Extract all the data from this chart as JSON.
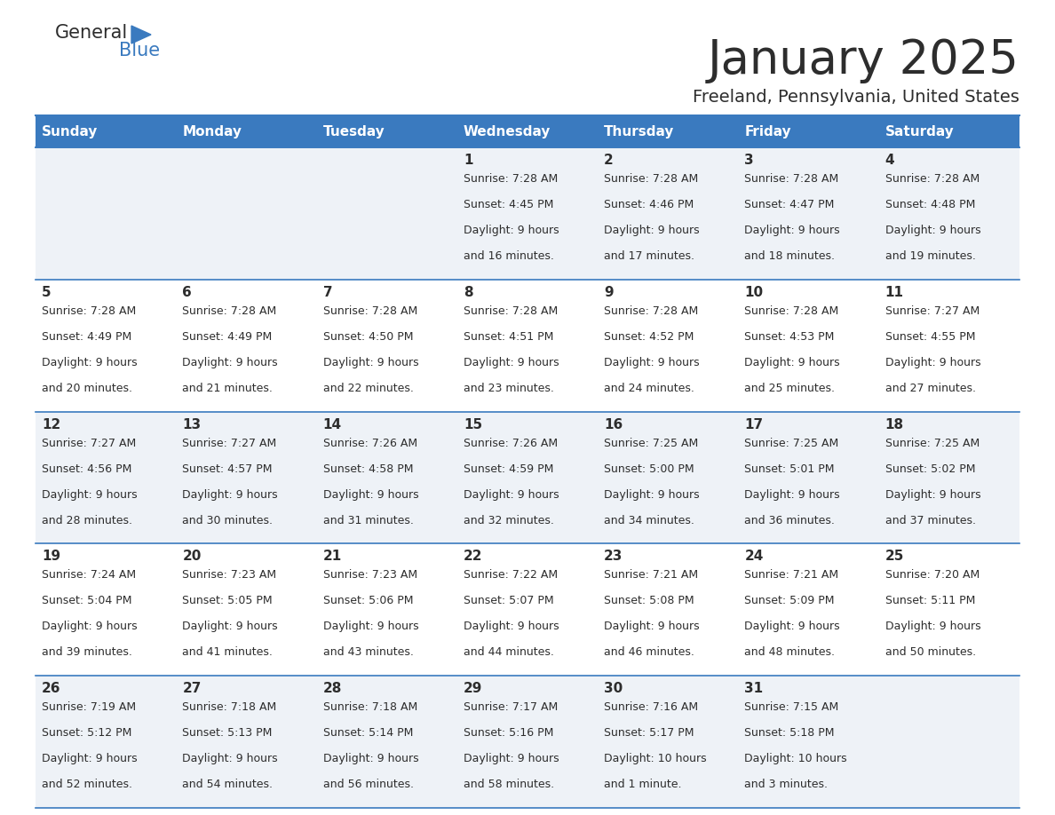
{
  "title": "January 2025",
  "subtitle": "Freeland, Pennsylvania, United States",
  "header_bg": "#3a7abf",
  "header_text_color": "#ffffff",
  "row_bg_odd": "#eef2f7",
  "row_bg_even": "#ffffff",
  "cell_border_color": "#3a7abf",
  "day_headers": [
    "Sunday",
    "Monday",
    "Tuesday",
    "Wednesday",
    "Thursday",
    "Friday",
    "Saturday"
  ],
  "title_color": "#2d2d2d",
  "subtitle_color": "#2d2d2d",
  "day_num_color": "#2d2d2d",
  "info_color": "#2d2d2d",
  "logo_general_color": "#2d2d2d",
  "logo_blue_color": "#3a7abf",
  "logo_triangle_color": "#3a7abf",
  "calendar_data": [
    [
      {
        "day": "",
        "sunrise": "",
        "sunset": "",
        "daylight": ""
      },
      {
        "day": "",
        "sunrise": "",
        "sunset": "",
        "daylight": ""
      },
      {
        "day": "",
        "sunrise": "",
        "sunset": "",
        "daylight": ""
      },
      {
        "day": "1",
        "sunrise": "7:28 AM",
        "sunset": "4:45 PM",
        "daylight_line1": "Daylight: 9 hours",
        "daylight_line2": "and 16 minutes."
      },
      {
        "day": "2",
        "sunrise": "7:28 AM",
        "sunset": "4:46 PM",
        "daylight_line1": "Daylight: 9 hours",
        "daylight_line2": "and 17 minutes."
      },
      {
        "day": "3",
        "sunrise": "7:28 AM",
        "sunset": "4:47 PM",
        "daylight_line1": "Daylight: 9 hours",
        "daylight_line2": "and 18 minutes."
      },
      {
        "day": "4",
        "sunrise": "7:28 AM",
        "sunset": "4:48 PM",
        "daylight_line1": "Daylight: 9 hours",
        "daylight_line2": "and 19 minutes."
      }
    ],
    [
      {
        "day": "5",
        "sunrise": "7:28 AM",
        "sunset": "4:49 PM",
        "daylight_line1": "Daylight: 9 hours",
        "daylight_line2": "and 20 minutes."
      },
      {
        "day": "6",
        "sunrise": "7:28 AM",
        "sunset": "4:49 PM",
        "daylight_line1": "Daylight: 9 hours",
        "daylight_line2": "and 21 minutes."
      },
      {
        "day": "7",
        "sunrise": "7:28 AM",
        "sunset": "4:50 PM",
        "daylight_line1": "Daylight: 9 hours",
        "daylight_line2": "and 22 minutes."
      },
      {
        "day": "8",
        "sunrise": "7:28 AM",
        "sunset": "4:51 PM",
        "daylight_line1": "Daylight: 9 hours",
        "daylight_line2": "and 23 minutes."
      },
      {
        "day": "9",
        "sunrise": "7:28 AM",
        "sunset": "4:52 PM",
        "daylight_line1": "Daylight: 9 hours",
        "daylight_line2": "and 24 minutes."
      },
      {
        "day": "10",
        "sunrise": "7:28 AM",
        "sunset": "4:53 PM",
        "daylight_line1": "Daylight: 9 hours",
        "daylight_line2": "and 25 minutes."
      },
      {
        "day": "11",
        "sunrise": "7:27 AM",
        "sunset": "4:55 PM",
        "daylight_line1": "Daylight: 9 hours",
        "daylight_line2": "and 27 minutes."
      }
    ],
    [
      {
        "day": "12",
        "sunrise": "7:27 AM",
        "sunset": "4:56 PM",
        "daylight_line1": "Daylight: 9 hours",
        "daylight_line2": "and 28 minutes."
      },
      {
        "day": "13",
        "sunrise": "7:27 AM",
        "sunset": "4:57 PM",
        "daylight_line1": "Daylight: 9 hours",
        "daylight_line2": "and 30 minutes."
      },
      {
        "day": "14",
        "sunrise": "7:26 AM",
        "sunset": "4:58 PM",
        "daylight_line1": "Daylight: 9 hours",
        "daylight_line2": "and 31 minutes."
      },
      {
        "day": "15",
        "sunrise": "7:26 AM",
        "sunset": "4:59 PM",
        "daylight_line1": "Daylight: 9 hours",
        "daylight_line2": "and 32 minutes."
      },
      {
        "day": "16",
        "sunrise": "7:25 AM",
        "sunset": "5:00 PM",
        "daylight_line1": "Daylight: 9 hours",
        "daylight_line2": "and 34 minutes."
      },
      {
        "day": "17",
        "sunrise": "7:25 AM",
        "sunset": "5:01 PM",
        "daylight_line1": "Daylight: 9 hours",
        "daylight_line2": "and 36 minutes."
      },
      {
        "day": "18",
        "sunrise": "7:25 AM",
        "sunset": "5:02 PM",
        "daylight_line1": "Daylight: 9 hours",
        "daylight_line2": "and 37 minutes."
      }
    ],
    [
      {
        "day": "19",
        "sunrise": "7:24 AM",
        "sunset": "5:04 PM",
        "daylight_line1": "Daylight: 9 hours",
        "daylight_line2": "and 39 minutes."
      },
      {
        "day": "20",
        "sunrise": "7:23 AM",
        "sunset": "5:05 PM",
        "daylight_line1": "Daylight: 9 hours",
        "daylight_line2": "and 41 minutes."
      },
      {
        "day": "21",
        "sunrise": "7:23 AM",
        "sunset": "5:06 PM",
        "daylight_line1": "Daylight: 9 hours",
        "daylight_line2": "and 43 minutes."
      },
      {
        "day": "22",
        "sunrise": "7:22 AM",
        "sunset": "5:07 PM",
        "daylight_line1": "Daylight: 9 hours",
        "daylight_line2": "and 44 minutes."
      },
      {
        "day": "23",
        "sunrise": "7:21 AM",
        "sunset": "5:08 PM",
        "daylight_line1": "Daylight: 9 hours",
        "daylight_line2": "and 46 minutes."
      },
      {
        "day": "24",
        "sunrise": "7:21 AM",
        "sunset": "5:09 PM",
        "daylight_line1": "Daylight: 9 hours",
        "daylight_line2": "and 48 minutes."
      },
      {
        "day": "25",
        "sunrise": "7:20 AM",
        "sunset": "5:11 PM",
        "daylight_line1": "Daylight: 9 hours",
        "daylight_line2": "and 50 minutes."
      }
    ],
    [
      {
        "day": "26",
        "sunrise": "7:19 AM",
        "sunset": "5:12 PM",
        "daylight_line1": "Daylight: 9 hours",
        "daylight_line2": "and 52 minutes."
      },
      {
        "day": "27",
        "sunrise": "7:18 AM",
        "sunset": "5:13 PM",
        "daylight_line1": "Daylight: 9 hours",
        "daylight_line2": "and 54 minutes."
      },
      {
        "day": "28",
        "sunrise": "7:18 AM",
        "sunset": "5:14 PM",
        "daylight_line1": "Daylight: 9 hours",
        "daylight_line2": "and 56 minutes."
      },
      {
        "day": "29",
        "sunrise": "7:17 AM",
        "sunset": "5:16 PM",
        "daylight_line1": "Daylight: 9 hours",
        "daylight_line2": "and 58 minutes."
      },
      {
        "day": "30",
        "sunrise": "7:16 AM",
        "sunset": "5:17 PM",
        "daylight_line1": "Daylight: 10 hours",
        "daylight_line2": "and 1 minute."
      },
      {
        "day": "31",
        "sunrise": "7:15 AM",
        "sunset": "5:18 PM",
        "daylight_line1": "Daylight: 10 hours",
        "daylight_line2": "and 3 minutes."
      },
      {
        "day": "",
        "sunrise": "",
        "sunset": "",
        "daylight_line1": "",
        "daylight_line2": ""
      }
    ]
  ]
}
